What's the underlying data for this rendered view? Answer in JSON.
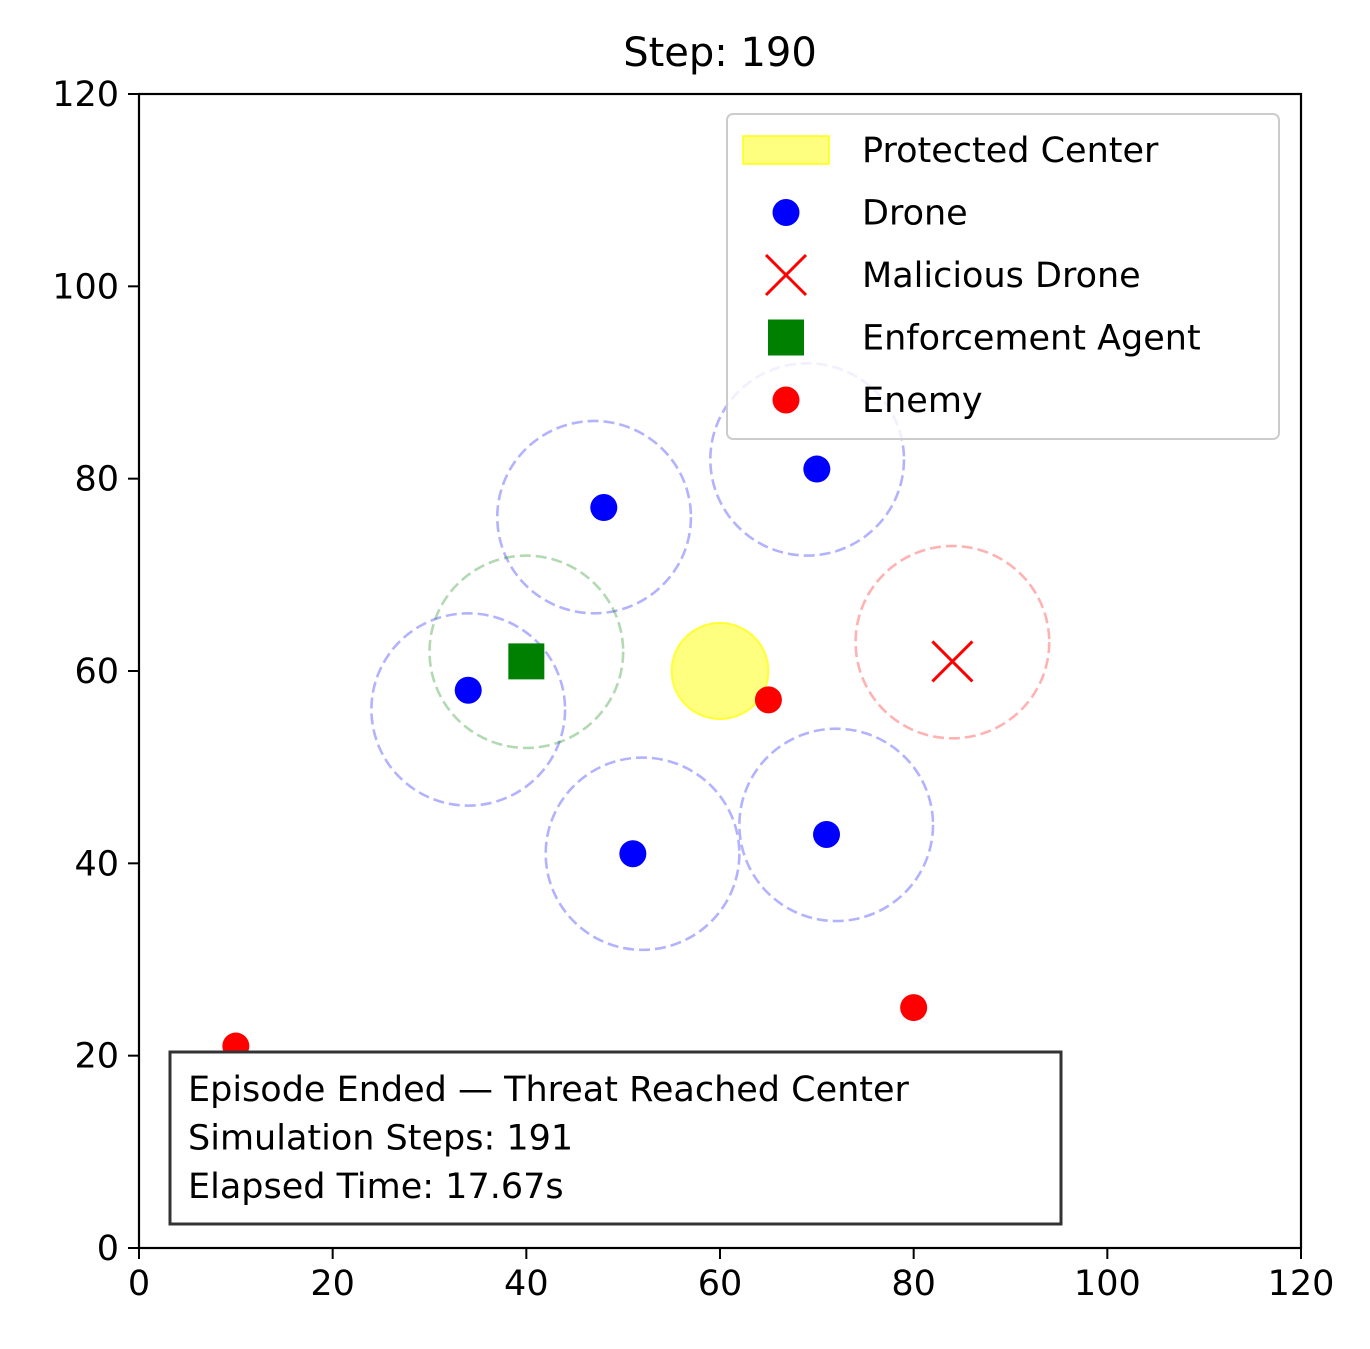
{
  "chart_data": {
    "type": "scatter",
    "title": "Step: 190",
    "xlabel": "",
    "ylabel": "",
    "xlim": [
      0,
      120
    ],
    "ylim": [
      0,
      120
    ],
    "x_ticks": [
      0,
      20,
      40,
      60,
      80,
      100,
      120
    ],
    "y_ticks": [
      0,
      20,
      40,
      60,
      80,
      100,
      120
    ],
    "grid": false,
    "legend_position": "top-right",
    "legend": [
      {
        "label": "Protected Center",
        "marker": "patch",
        "color": "#ffff00"
      },
      {
        "label": "Drone",
        "marker": "circle",
        "color": "#0000ff"
      },
      {
        "label": "Malicious Drone",
        "marker": "x",
        "color": "#ff0000"
      },
      {
        "label": "Enforcement Agent",
        "marker": "square",
        "color": "#008000"
      },
      {
        "label": "Enemy",
        "marker": "circle",
        "color": "#ff0000"
      }
    ],
    "protected_center": {
      "x": 60,
      "y": 60,
      "radius": 5,
      "color": "#ffff00"
    },
    "sensing_ranges": [
      {
        "x": 47,
        "y": 76,
        "r": 10,
        "color": "#0000ff"
      },
      {
        "x": 69,
        "y": 82,
        "r": 10,
        "color": "#0000ff"
      },
      {
        "x": 34,
        "y": 56,
        "r": 10,
        "color": "#0000ff"
      },
      {
        "x": 52,
        "y": 41,
        "r": 10,
        "color": "#0000ff"
      },
      {
        "x": 72,
        "y": 44,
        "r": 10,
        "color": "#0000ff"
      },
      {
        "x": 40,
        "y": 62,
        "r": 10,
        "color": "#008000"
      },
      {
        "x": 84,
        "y": 63,
        "r": 10,
        "color": "#ff0000"
      }
    ],
    "drones": [
      {
        "x": 48,
        "y": 77
      },
      {
        "x": 70,
        "y": 81
      },
      {
        "x": 34,
        "y": 58
      },
      {
        "x": 51,
        "y": 41
      },
      {
        "x": 71,
        "y": 43
      }
    ],
    "malicious_drones": [
      {
        "x": 84,
        "y": 61
      }
    ],
    "enforcement_agents": [
      {
        "x": 40,
        "y": 61
      }
    ],
    "enemies": [
      {
        "x": 65,
        "y": 57
      },
      {
        "x": 80,
        "y": 25
      },
      {
        "x": 10,
        "y": 21
      }
    ],
    "status_box": {
      "lines": [
        "Episode Ended — Threat Reached Center",
        "Simulation Steps: 191",
        "Elapsed Time: 17.67s"
      ]
    }
  }
}
